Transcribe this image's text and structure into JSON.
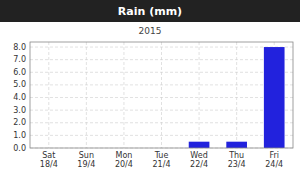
{
  "chart_data": {
    "type": "bar",
    "title": "Rain (mm)",
    "subtitle": "2015",
    "categories": [
      "Sat\n18/4",
      "Sun\n19/4",
      "Mon\n20/4",
      "Tue\n21/4",
      "Wed\n22/4",
      "Thu\n23/4",
      "Fri\n24/4"
    ],
    "values": [
      0.0,
      0.0,
      0.0,
      0.0,
      0.5,
      0.5,
      8.0
    ],
    "color": "#2222dd",
    "ylim": [
      0.0,
      8.4
    ],
    "yticks": [
      {
        "value": 0.0,
        "label": "0.0"
      },
      {
        "value": 1.0,
        "label": "1.0"
      },
      {
        "value": 2.0,
        "label": "2.0"
      },
      {
        "value": 3.0,
        "label": "3.0"
      },
      {
        "value": 4.0,
        "label": "4.0"
      },
      {
        "value": 5.0,
        "label": "5.0"
      },
      {
        "value": 6.0,
        "label": "6.0"
      },
      {
        "value": 7.0,
        "label": "7.0"
      },
      {
        "value": 8.0,
        "label": "8.0"
      }
    ],
    "grid": true
  }
}
